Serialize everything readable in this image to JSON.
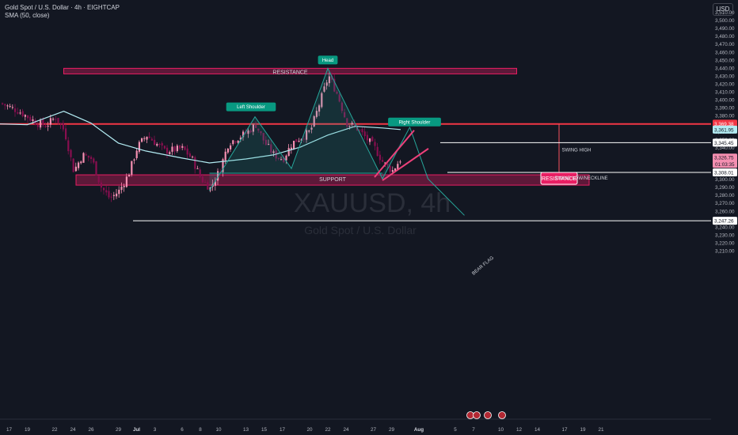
{
  "header": {
    "symbol_title": "Gold Spot / U.S. Dollar · 4h · EIGHTCAP",
    "indicator": "SMA (50, close)",
    "currency": "USD"
  },
  "watermark": {
    "symbol": "XAUUSD, 4h",
    "name": "Gold Spot / U.S. Dollar"
  },
  "colors": {
    "bg": "#131722",
    "bull": "#f48fb1",
    "bear": "#880e4f",
    "sma": "#b2ebf2",
    "teal": "#26a69a",
    "accent": "#f23645",
    "zone": "#e91e63"
  },
  "chart_data": {
    "type": "candlestick",
    "y_axis": {
      "min": 3210,
      "max": 3515,
      "ticks": [
        3510,
        3500,
        3490,
        3480,
        3470,
        3460,
        3450,
        3440,
        3430,
        3420,
        3410,
        3400,
        3390,
        3380,
        3370,
        3360,
        3350,
        3340,
        3330,
        3320,
        3310,
        3300,
        3290,
        3280,
        3270,
        3260,
        3250,
        3240,
        3230,
        3220,
        3210
      ],
      "labels": [
        "3,510.00",
        "3,500.00",
        "3,490.00",
        "3,480.00",
        "3,470.00",
        "3,460.00",
        "3,450.00",
        "3,440.00",
        "3,430.00",
        "3,420.00",
        "3,410.00",
        "3,400.00",
        "3,390.00",
        "3,380.00",
        "3,370.00",
        "3,360.00",
        "3,350.00",
        "3,340.00",
        "3,330.00",
        "3,320.00",
        "3,310.00",
        "3,300.00",
        "3,290.00",
        "3,280.00",
        "3,270.00",
        "3,260.00",
        "3,250.00",
        "3,240.00",
        "3,230.00",
        "3,220.00",
        "3,210.00"
      ]
    },
    "x_axis": {
      "start": "2025-06-16",
      "ticks": [
        {
          "date": "2025-06-17",
          "label": "17"
        },
        {
          "date": "2025-06-19",
          "label": "19"
        },
        {
          "date": "2025-06-22",
          "label": "22"
        },
        {
          "date": "2025-06-24",
          "label": "24"
        },
        {
          "date": "2025-06-26",
          "label": "26"
        },
        {
          "date": "2025-06-29",
          "label": "29"
        },
        {
          "date": "2025-07-01",
          "label": "Jul"
        },
        {
          "date": "2025-07-03",
          "label": "3"
        },
        {
          "date": "2025-07-06",
          "label": "6"
        },
        {
          "date": "2025-07-08",
          "label": "8"
        },
        {
          "date": "2025-07-10",
          "label": "10"
        },
        {
          "date": "2025-07-13",
          "label": "13"
        },
        {
          "date": "2025-07-15",
          "label": "15"
        },
        {
          "date": "2025-07-17",
          "label": "17"
        },
        {
          "date": "2025-07-20",
          "label": "20"
        },
        {
          "date": "2025-07-22",
          "label": "22"
        },
        {
          "date": "2025-07-24",
          "label": "24"
        },
        {
          "date": "2025-07-27",
          "label": "27"
        },
        {
          "date": "2025-07-29",
          "label": "29"
        },
        {
          "date": "2025-08-01",
          "label": "Aug"
        },
        {
          "date": "2025-08-05",
          "label": "5"
        },
        {
          "date": "2025-08-07",
          "label": "7"
        },
        {
          "date": "2025-08-10",
          "label": "10"
        },
        {
          "date": "2025-08-12",
          "label": "12"
        },
        {
          "date": "2025-08-14",
          "label": "14"
        },
        {
          "date": "2025-08-17",
          "label": "17"
        },
        {
          "date": "2025-08-19",
          "label": "19"
        },
        {
          "date": "2025-08-21",
          "label": "21"
        }
      ]
    },
    "close_path": [
      {
        "d": "2025-06-16",
        "v": 3395
      },
      {
        "d": "2025-06-18",
        "v": 3385
      },
      {
        "d": "2025-06-20",
        "v": 3370
      },
      {
        "d": "2025-06-21",
        "v": 3367
      },
      {
        "d": "2025-06-22",
        "v": 3378
      },
      {
        "d": "2025-06-23",
        "v": 3360
      },
      {
        "d": "2025-06-24",
        "v": 3310
      },
      {
        "d": "2025-06-25",
        "v": 3330
      },
      {
        "d": "2025-06-26",
        "v": 3325
      },
      {
        "d": "2025-06-27",
        "v": 3290
      },
      {
        "d": "2025-06-28",
        "v": 3275
      },
      {
        "d": "2025-06-29",
        "v": 3285
      },
      {
        "d": "2025-06-30",
        "v": 3305
      },
      {
        "d": "2025-07-01",
        "v": 3340
      },
      {
        "d": "2025-07-02",
        "v": 3355
      },
      {
        "d": "2025-07-03",
        "v": 3345
      },
      {
        "d": "2025-07-04",
        "v": 3335
      },
      {
        "d": "2025-07-06",
        "v": 3338
      },
      {
        "d": "2025-07-07",
        "v": 3325
      },
      {
        "d": "2025-07-08",
        "v": 3300
      },
      {
        "d": "2025-07-09",
        "v": 3288
      },
      {
        "d": "2025-07-10",
        "v": 3310
      },
      {
        "d": "2025-07-11",
        "v": 3345
      },
      {
        "d": "2025-07-13",
        "v": 3358
      },
      {
        "d": "2025-07-14",
        "v": 3368
      },
      {
        "d": "2025-07-15",
        "v": 3345
      },
      {
        "d": "2025-07-16",
        "v": 3330
      },
      {
        "d": "2025-07-17",
        "v": 3325
      },
      {
        "d": "2025-07-18",
        "v": 3345
      },
      {
        "d": "2025-07-20",
        "v": 3360
      },
      {
        "d": "2025-07-21",
        "v": 3395
      },
      {
        "d": "2025-07-22",
        "v": 3430
      },
      {
        "d": "2025-07-23",
        "v": 3405
      },
      {
        "d": "2025-07-24",
        "v": 3370
      },
      {
        "d": "2025-07-25",
        "v": 3365
      },
      {
        "d": "2025-07-27",
        "v": 3340
      },
      {
        "d": "2025-07-28",
        "v": 3320
      },
      {
        "d": "2025-07-29",
        "v": 3310
      },
      {
        "d": "2025-07-30",
        "v": 3326.75
      }
    ],
    "sma_path": [
      {
        "d": "2025-06-16",
        "v": 3369
      },
      {
        "d": "2025-06-19",
        "v": 3368
      },
      {
        "d": "2025-06-23",
        "v": 3385
      },
      {
        "d": "2025-06-26",
        "v": 3370
      },
      {
        "d": "2025-06-29",
        "v": 3345
      },
      {
        "d": "2025-07-02",
        "v": 3335
      },
      {
        "d": "2025-07-06",
        "v": 3326
      },
      {
        "d": "2025-07-09",
        "v": 3320
      },
      {
        "d": "2025-07-13",
        "v": 3325
      },
      {
        "d": "2025-07-16",
        "v": 3330
      },
      {
        "d": "2025-07-19",
        "v": 3340
      },
      {
        "d": "2025-07-22",
        "v": 3355
      },
      {
        "d": "2025-07-25",
        "v": 3366
      },
      {
        "d": "2025-07-28",
        "v": 3364
      },
      {
        "d": "2025-07-30",
        "v": 3362
      }
    ],
    "annotations": {
      "resistance_zone": {
        "label": "RESISTANCE",
        "from": "2025-06-23",
        "to": "2025-08-10",
        "low": 3432,
        "high": 3439
      },
      "support_zone": {
        "label": "SUPPORT",
        "from": "2025-06-16",
        "to": "2025-08-10",
        "low": 3298,
        "high": 3305
      },
      "resistance_line": {
        "value": 3369
      },
      "resistance_callout": "RESISTANCE",
      "swing_high": {
        "label": "SWING HIGH",
        "value": 3345.45,
        "from": "2025-07-27"
      },
      "swing_low": {
        "label": "SWING LOW/NECKLINE",
        "value": 3308.01,
        "from": "2025-07-27"
      },
      "lowest_line": {
        "value": 3247.26,
        "from": "2025-06-28"
      },
      "pattern_labels": {
        "left": "Left Shoulder",
        "head": "Head",
        "right": "Right Shoulder"
      },
      "pattern_points": [
        {
          "d": "2025-07-09",
          "v": 3285
        },
        {
          "d": "2025-07-14",
          "v": 3378
        },
        {
          "d": "2025-07-18",
          "v": 3313
        },
        {
          "d": "2025-07-22",
          "v": 3439
        },
        {
          "d": "2025-07-28",
          "v": 3300
        },
        {
          "d": "2025-07-31",
          "v": 3365
        },
        {
          "d": "2025-08-02",
          "v": 3300
        },
        {
          "d": "2025-08-06",
          "v": 3254
        }
      ],
      "flag_label": "BEAR FLAG",
      "flag_lower": [
        {
          "d": "2025-07-28",
          "v": 3300
        },
        {
          "d": "2025-08-01",
          "v": 3340
        }
      ],
      "flag_upper": [
        {
          "d": "2025-07-28",
          "v": 3320
        },
        {
          "d": "2025-08-01",
          "v": 3365
        }
      ]
    },
    "price_tags": [
      {
        "value": 3369.38,
        "label": "3,369.38",
        "type": "red"
      },
      {
        "value": 3361.95,
        "label": "3,361.95",
        "type": "sma"
      },
      {
        "value": 3345.45,
        "label": "3,345.45",
        "type": "white"
      },
      {
        "value": 3326.75,
        "label": "3,326.75",
        "type": "current",
        "sub": "01:03:35"
      },
      {
        "value": 3308.01,
        "label": "3,308.01",
        "type": "white"
      },
      {
        "value": 3247.26,
        "label": "3,247.26",
        "type": "white"
      }
    ]
  }
}
